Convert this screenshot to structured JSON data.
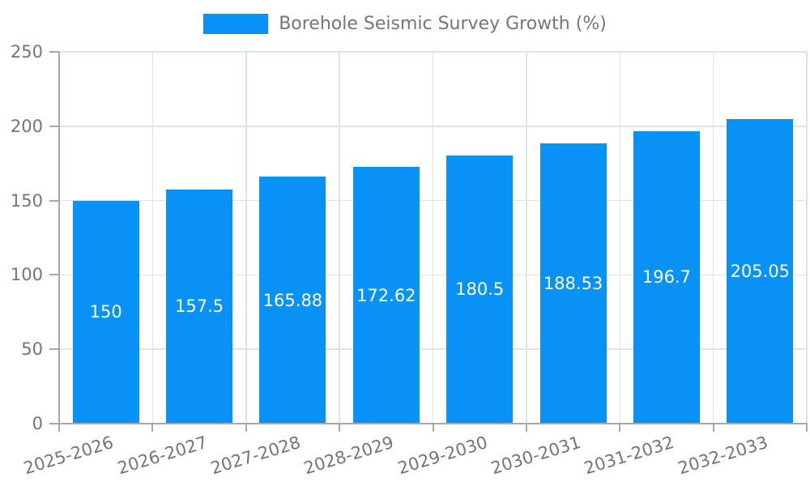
{
  "chart_data": {
    "type": "bar",
    "legend_label": "Borehole Seismic Survey Growth (%)",
    "legend_position": "top",
    "categories": [
      "2025-2026",
      "2026-2027",
      "2027-2028",
      "2028-2029",
      "2029-2030",
      "2030-2031",
      "2031-2032",
      "2032-2033"
    ],
    "values": [
      150,
      157.5,
      165.88,
      172.62,
      180.5,
      188.53,
      196.7,
      205.05
    ],
    "value_labels": [
      "150",
      "157.5",
      "165.88",
      "172.62",
      "180.5",
      "188.53",
      "196.7",
      "205.05"
    ],
    "xlabel": "",
    "ylabel": "",
    "ylim": [
      0,
      250
    ],
    "yticks": [
      0,
      50,
      100,
      150,
      200,
      250
    ],
    "grid": true
  },
  "colors": {
    "bar": "#0992f6",
    "bar_label": "#ffffff",
    "axis_line": "#a8a8a8",
    "gridline": "#e2e2e2",
    "tick_text": "#757575"
  }
}
